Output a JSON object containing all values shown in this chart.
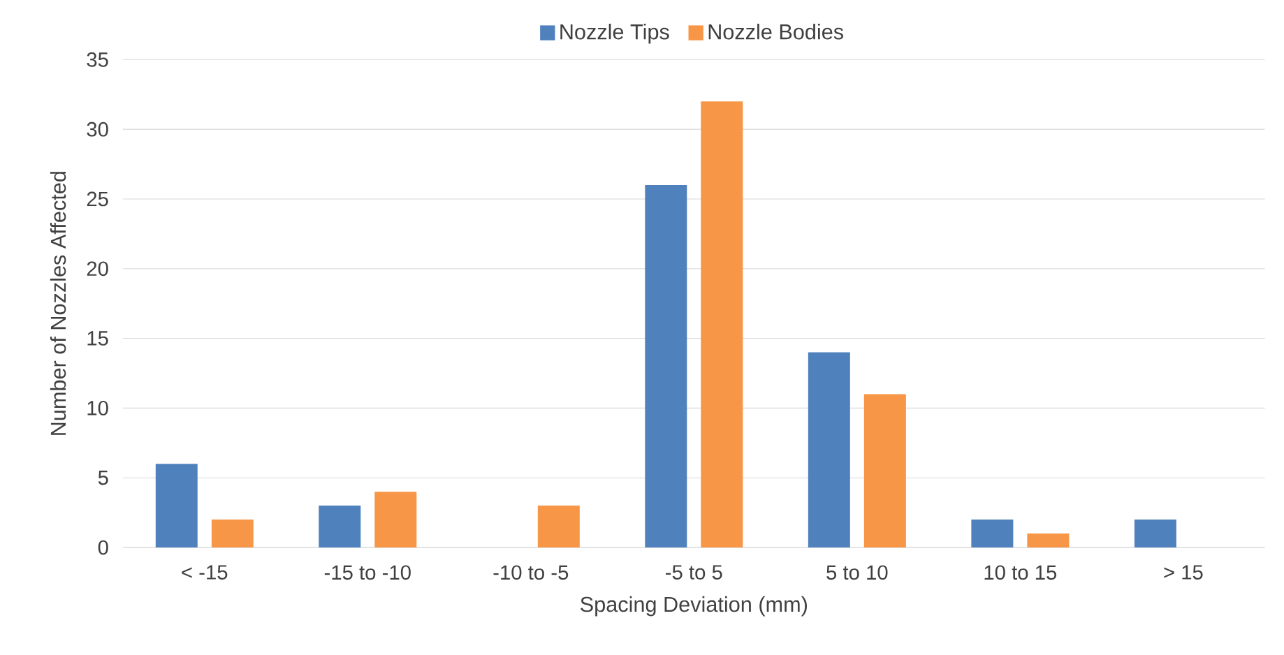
{
  "chart_data": {
    "type": "bar",
    "xlabel": "Spacing Deviation (mm)",
    "ylabel": "Number of Nozzles Affected",
    "categories": [
      "< -15",
      "-15 to -10",
      "-10 to -5",
      "-5 to 5",
      "5 to 10",
      "10 to 15",
      "> 15"
    ],
    "series": [
      {
        "name": "Nozzle Tips",
        "color": "#4f81bd",
        "values": [
          6,
          3,
          0,
          26,
          14,
          2,
          2
        ]
      },
      {
        "name": "Nozzle Bodies",
        "color": "#f79646",
        "values": [
          2,
          4,
          3,
          32,
          11,
          1,
          0
        ]
      }
    ],
    "ylim": [
      0,
      35
    ],
    "yticks": [
      0,
      5,
      10,
      15,
      20,
      25,
      30,
      35
    ],
    "grid": "y",
    "legend": "top"
  }
}
